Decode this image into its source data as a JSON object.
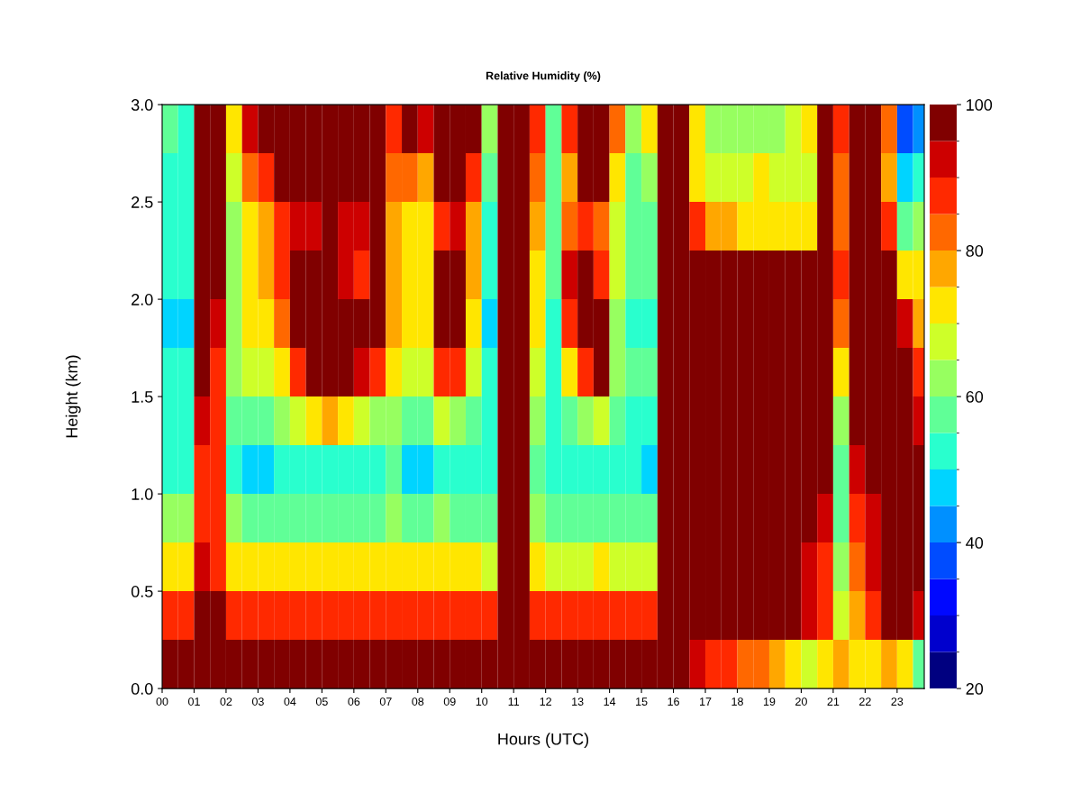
{
  "chart_data": {
    "type": "heatmap",
    "title": "Relative Humidity (%)",
    "xlabel": "Hours (UTC)",
    "ylabel": "Height (km)",
    "x": [
      0.25,
      0.75,
      1.25,
      1.75,
      2.25,
      2.75,
      3.25,
      3.75,
      4.25,
      4.75,
      5.25,
      5.75,
      6.25,
      6.75,
      7.25,
      7.75,
      8.25,
      8.75,
      9.25,
      9.75,
      10.25,
      10.75,
      11.25,
      11.75,
      12.25,
      12.75,
      13.25,
      13.75,
      14.25,
      14.75,
      15.25,
      15.75,
      16.25,
      16.75,
      17.25,
      17.75,
      18.25,
      18.75,
      19.25,
      19.75,
      20.25,
      20.75,
      21.25,
      21.75,
      22.25,
      22.75,
      23.25,
      23.75
    ],
    "cells": [
      [
        55,
        50,
        100,
        100,
        70,
        90,
        95,
        100,
        100,
        100,
        100,
        100,
        100,
        100,
        85,
        95,
        90,
        100,
        100,
        95,
        60,
        95,
        100,
        85,
        55,
        85,
        100,
        100,
        80,
        60,
        70,
        100,
        100,
        70,
        60,
        60,
        60,
        60,
        60,
        65,
        70,
        100,
        85,
        100,
        100,
        80,
        35,
        40
      ],
      [
        50,
        50,
        100,
        100,
        65,
        80,
        85,
        95,
        100,
        100,
        100,
        100,
        100,
        100,
        80,
        80,
        75,
        95,
        100,
        85,
        55,
        95,
        100,
        80,
        55,
        75,
        95,
        95,
        70,
        55,
        60,
        100,
        100,
        70,
        65,
        65,
        65,
        70,
        65,
        65,
        65,
        100,
        80,
        100,
        95,
        75,
        45,
        50
      ],
      [
        50,
        50,
        100,
        100,
        60,
        70,
        75,
        85,
        90,
        90,
        95,
        90,
        90,
        95,
        75,
        70,
        70,
        85,
        90,
        75,
        50,
        95,
        100,
        75,
        55,
        80,
        85,
        80,
        65,
        55,
        55,
        100,
        100,
        85,
        75,
        75,
        70,
        70,
        70,
        70,
        70,
        100,
        80,
        100,
        95,
        85,
        55,
        60
      ],
      [
        50,
        50,
        100,
        95,
        60,
        70,
        75,
        85,
        95,
        95,
        100,
        90,
        85,
        95,
        75,
        70,
        70,
        95,
        95,
        75,
        50,
        95,
        100,
        70,
        55,
        90,
        95,
        85,
        65,
        55,
        55,
        100,
        100,
        100,
        100,
        95,
        95,
        95,
        95,
        95,
        95,
        100,
        85,
        100,
        100,
        95,
        70,
        70
      ],
      [
        45,
        45,
        95,
        90,
        60,
        70,
        70,
        80,
        100,
        100,
        100,
        100,
        100,
        95,
        75,
        70,
        70,
        95,
        100,
        70,
        45,
        95,
        100,
        70,
        50,
        85,
        100,
        95,
        60,
        50,
        50,
        100,
        100,
        100,
        100,
        100,
        100,
        100,
        100,
        100,
        100,
        100,
        80,
        100,
        95,
        100,
        90,
        75
      ],
      [
        50,
        50,
        95,
        85,
        60,
        65,
        65,
        70,
        85,
        95,
        100,
        95,
        90,
        85,
        70,
        65,
        65,
        85,
        85,
        65,
        50,
        95,
        100,
        65,
        50,
        70,
        85,
        95,
        60,
        55,
        55,
        100,
        100,
        100,
        100,
        100,
        100,
        100,
        100,
        100,
        100,
        100,
        70,
        95,
        95,
        100,
        100,
        85
      ],
      [
        50,
        50,
        90,
        85,
        55,
        55,
        55,
        60,
        65,
        70,
        75,
        70,
        65,
        60,
        60,
        55,
        55,
        65,
        60,
        55,
        50,
        95,
        100,
        60,
        50,
        55,
        60,
        65,
        55,
        50,
        50,
        100,
        100,
        100,
        100,
        100,
        100,
        100,
        100,
        100,
        100,
        100,
        60,
        95,
        95,
        100,
        100,
        90
      ],
      [
        50,
        50,
        85,
        85,
        50,
        45,
        45,
        50,
        50,
        50,
        50,
        50,
        50,
        50,
        55,
        45,
        45,
        50,
        50,
        50,
        50,
        95,
        100,
        55,
        50,
        50,
        50,
        50,
        50,
        50,
        45,
        100,
        100,
        100,
        100,
        100,
        100,
        100,
        100,
        100,
        100,
        100,
        55,
        90,
        95,
        100,
        100,
        95
      ],
      [
        60,
        60,
        85,
        85,
        60,
        55,
        55,
        55,
        55,
        55,
        55,
        55,
        55,
        55,
        60,
        55,
        55,
        60,
        55,
        55,
        55,
        95,
        100,
        60,
        55,
        55,
        55,
        55,
        55,
        55,
        55,
        100,
        100,
        100,
        100,
        100,
        100,
        100,
        100,
        100,
        95,
        90,
        55,
        85,
        90,
        100,
        100,
        95
      ],
      [
        70,
        70,
        90,
        85,
        70,
        70,
        70,
        70,
        70,
        70,
        70,
        70,
        70,
        70,
        70,
        70,
        70,
        70,
        70,
        70,
        65,
        95,
        100,
        70,
        65,
        65,
        65,
        70,
        65,
        65,
        65,
        100,
        100,
        100,
        100,
        100,
        100,
        100,
        100,
        95,
        90,
        85,
        60,
        80,
        90,
        100,
        100,
        95
      ],
      [
        85,
        85,
        95,
        95,
        85,
        85,
        85,
        85,
        85,
        85,
        85,
        85,
        85,
        85,
        85,
        85,
        85,
        85,
        85,
        85,
        85,
        100,
        100,
        85,
        85,
        85,
        85,
        85,
        85,
        85,
        85,
        100,
        100,
        100,
        100,
        100,
        100,
        100,
        95,
        95,
        90,
        85,
        65,
        75,
        85,
        95,
        95,
        90
      ],
      [
        95,
        95,
        100,
        100,
        95,
        100,
        100,
        100,
        100,
        100,
        100,
        100,
        100,
        100,
        100,
        100,
        100,
        100,
        100,
        100,
        100,
        100,
        100,
        100,
        100,
        100,
        100,
        100,
        100,
        100,
        100,
        100,
        95,
        90,
        85,
        85,
        80,
        80,
        75,
        70,
        65,
        70,
        75,
        70,
        70,
        75,
        70,
        55
      ]
    ],
    "clim": [
      20,
      100
    ],
    "cticks": [
      20,
      40,
      60,
      80,
      100
    ],
    "xlim": [
      0,
      23.85
    ],
    "xticks": [
      {
        "value": 0,
        "label": "00"
      },
      {
        "value": 1,
        "label": "01"
      },
      {
        "value": 2,
        "label": "02"
      },
      {
        "value": 3,
        "label": "03"
      },
      {
        "value": 4,
        "label": "04"
      },
      {
        "value": 5,
        "label": "05"
      },
      {
        "value": 6,
        "label": "06"
      },
      {
        "value": 7,
        "label": "07"
      },
      {
        "value": 8,
        "label": "08"
      },
      {
        "value": 9,
        "label": "09"
      },
      {
        "value": 10,
        "label": "10"
      },
      {
        "value": 11,
        "label": "11"
      },
      {
        "value": 12,
        "label": "12"
      },
      {
        "value": 13,
        "label": "13"
      },
      {
        "value": 14,
        "label": "14"
      },
      {
        "value": 15,
        "label": "15"
      },
      {
        "value": 16,
        "label": "16"
      },
      {
        "value": 17,
        "label": "17"
      },
      {
        "value": 18,
        "label": "18"
      },
      {
        "value": 19,
        "label": "19"
      },
      {
        "value": 20,
        "label": "20"
      },
      {
        "value": 21,
        "label": "21"
      },
      {
        "value": 22,
        "label": "22"
      },
      {
        "value": 23,
        "label": "23"
      }
    ],
    "ylim": [
      0,
      3.0
    ],
    "yticks": [
      {
        "value": 0,
        "label": "0.0"
      },
      {
        "value": 0.5,
        "label": "0.5"
      },
      {
        "value": 1.0,
        "label": "1.0"
      },
      {
        "value": 1.5,
        "label": "1.5"
      },
      {
        "value": 2.0,
        "label": "2.0"
      },
      {
        "value": 2.5,
        "label": "2.5"
      },
      {
        "value": 3.0,
        "label": "3.0"
      }
    ]
  }
}
